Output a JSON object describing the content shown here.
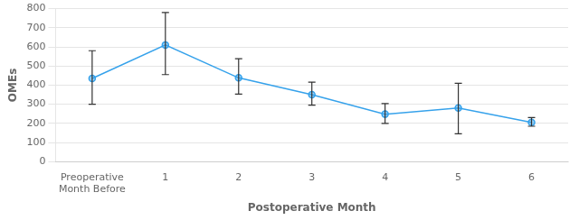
{
  "chart_data": {
    "type": "line",
    "categories": [
      "Preoperative\nMonth Before",
      "1",
      "2",
      "3",
      "4",
      "5",
      "6"
    ],
    "values": [
      435,
      610,
      438,
      350,
      248,
      280,
      205
    ],
    "err_upper": [
      145,
      170,
      100,
      65,
      55,
      130,
      25
    ],
    "err_lower": [
      135,
      155,
      85,
      55,
      48,
      135,
      20
    ],
    "marker": "circle",
    "xlabel": "Postoperative Month",
    "ylabel": "OMEs",
    "ylim": [
      0,
      800
    ],
    "yticks": [
      0,
      100,
      200,
      300,
      400,
      500,
      600,
      700,
      800
    ],
    "grid": true
  }
}
